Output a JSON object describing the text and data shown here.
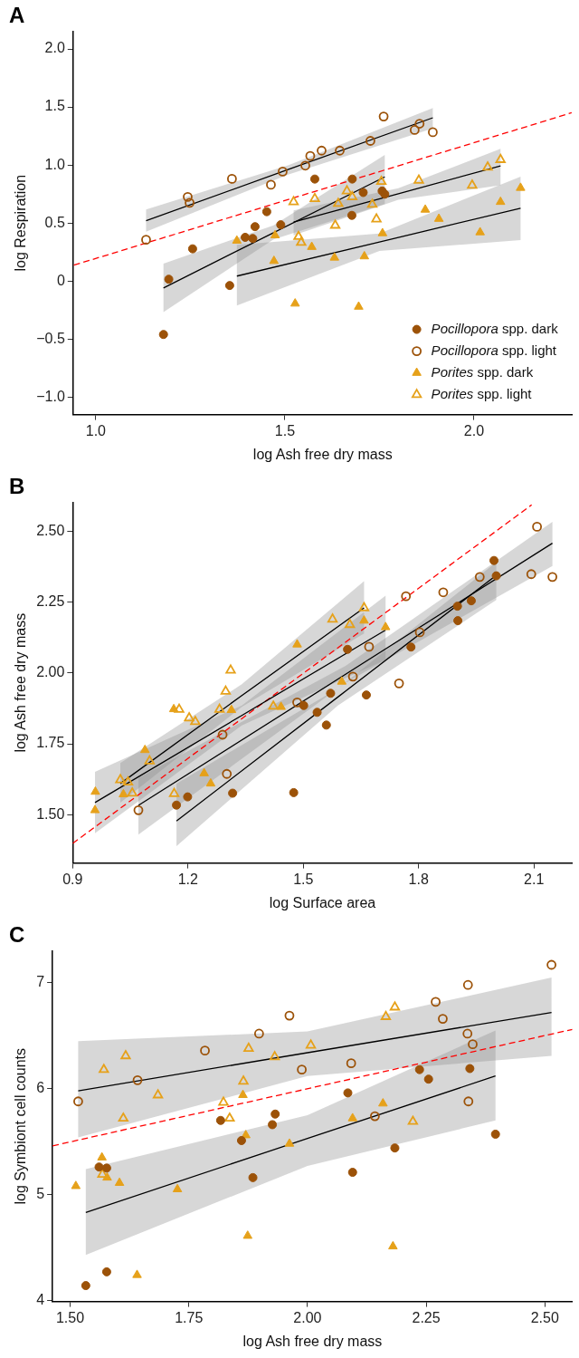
{
  "chart_data": [
    {
      "type": "scatter",
      "title": "A",
      "xlabel": "log Ash free dry mass",
      "ylabel": "log Respiration",
      "xlim": [
        0.94,
        2.26
      ],
      "ylim": [
        -1.15,
        2.15
      ],
      "xticks": [
        {
          "value": 1,
          "label": "1.0"
        },
        {
          "value": 1.5,
          "label": "1.5"
        },
        {
          "value": 2,
          "label": "2.0"
        }
      ],
      "yticks": [
        {
          "value": -1,
          "label": "−1.0"
        },
        {
          "value": -0.5,
          "label": "−0.5"
        },
        0,
        {
          "value": 0.5,
          "label": "0.5"
        },
        {
          "value": 1,
          "label": "1.0"
        },
        {
          "value": 1.5,
          "label": "1.5"
        },
        {
          "value": 2,
          "label": "2.0"
        }
      ],
      "legend": "bottom right",
      "series": [
        {
          "type": "line",
          "color": "#000000",
          "x": [
            1.133,
            1.51,
            1.891
          ],
          "values": [
            0.52,
            0.963,
            1.407
          ],
          "lower": [
            0.426,
            0.92,
            1.315
          ],
          "upper": [
            0.617,
            1.0,
            1.491
          ]
        },
        {
          "type": "line",
          "color": "#000000",
          "x": [
            1.179,
            1.47,
            1.764
          ],
          "values": [
            -0.059,
            0.417,
            0.898
          ],
          "lower": [
            -0.267,
            0.36,
            0.663
          ],
          "upper": [
            0.151,
            0.48,
            1.086
          ]
        },
        {
          "type": "line",
          "color": "#000000",
          "x": [
            1.523,
            1.8,
            2.07
          ],
          "values": [
            0.509,
            0.753,
            0.992
          ],
          "lower": [
            0.394,
            0.7,
            0.825
          ],
          "upper": [
            0.609,
            0.8,
            1.14
          ]
        },
        {
          "type": "line",
          "color": "#000000",
          "x": [
            1.373,
            1.75,
            2.123
          ],
          "values": [
            0.043,
            0.337,
            0.628
          ],
          "lower": [
            -0.21,
            0.26,
            0.353
          ],
          "upper": [
            0.313,
            0.41,
            0.9
          ]
        },
        {
          "type": "line",
          "color": "#ff0000",
          "line_style": "dashed",
          "x": [
            0.942,
            2.258
          ],
          "values": [
            0.137,
            1.45
          ]
        },
        {
          "name": "Pocillopora spp. dark",
          "color": "#9c5208",
          "marker": "circle",
          "x": [
            1.179,
            1.193,
            1.256,
            1.354,
            1.395,
            1.415,
            1.421,
            1.452,
            1.489,
            1.579,
            1.678,
            1.677,
            1.707,
            1.757,
            1.764
          ],
          "values": [
            -0.46,
            0.016,
            0.278,
            -0.038,
            0.377,
            0.367,
            0.469,
            0.598,
            0.485,
            0.879,
            0.879,
            0.566,
            0.763,
            0.776,
            0.749
          ]
        },
        {
          "name": "Pocillopora spp. light",
          "color": "#9c5208",
          "marker": "circle-open",
          "x": [
            1.133,
            1.243,
            1.248,
            1.36,
            1.463,
            1.494,
            1.554,
            1.567,
            1.597,
            1.645,
            1.726,
            1.761,
            1.843,
            1.856,
            1.891
          ],
          "values": [
            0.356,
            0.725,
            0.674,
            0.881,
            0.83,
            0.943,
            0.995,
            1.078,
            1.124,
            1.124,
            1.208,
            1.418,
            1.302,
            1.356,
            1.283
          ]
        },
        {
          "name": "Porites spp. dark",
          "color": "#e6a11a",
          "marker": "triangle",
          "x": [
            1.373,
            1.474,
            1.471,
            1.571,
            1.527,
            1.631,
            1.71,
            1.695,
            1.758,
            1.871,
            1.907,
            2.016,
            2.07,
            2.123
          ],
          "values": [
            0.348,
            0.394,
            0.173,
            0.294,
            -0.194,
            0.202,
            0.213,
            -0.221,
            0.412,
            0.615,
            0.536,
            0.42,
            0.682,
            0.803
          ]
        },
        {
          "name": "Porites spp. light",
          "color": "#e6a11a",
          "marker": "triangle-open",
          "x": [
            1.523,
            1.536,
            1.543,
            1.579,
            1.633,
            1.641,
            1.664,
            1.678,
            1.731,
            1.742,
            1.755,
            1.854,
            1.995,
            2.036,
            2.07
          ],
          "values": [
            0.682,
            0.383,
            0.332,
            0.709,
            0.48,
            0.668,
            0.776,
            0.725,
            0.66,
            0.534,
            0.857,
            0.868,
            0.825,
            0.981,
            1.046
          ]
        }
      ]
    },
    {
      "type": "scatter",
      "title": "B",
      "xlabel": "log Surface area",
      "ylabel": "log Ash free dry mass",
      "xlim": [
        0.9,
        2.2
      ],
      "ylim": [
        1.33,
        2.6
      ],
      "xticks": [
        0.9,
        1.2,
        1.5,
        1.8,
        2.1
      ],
      "yticks": [
        {
          "value": 1.5,
          "label": "1.50"
        },
        1.75,
        {
          "value": 2,
          "label": "2.00"
        },
        2.25,
        {
          "value": 2.5,
          "label": "2.50"
        }
      ],
      "series": [
        {
          "type": "line",
          "color": "#000000",
          "x": [
            1.024,
            1.34,
            1.658
          ],
          "values": [
            1.61,
            1.92,
            2.229
          ],
          "lower": [
            1.543,
            1.88,
            2.139
          ],
          "upper": [
            1.682,
            1.96,
            2.323
          ]
        },
        {
          "type": "line",
          "color": "#000000",
          "x": [
            0.958,
            1.34,
            1.714
          ],
          "values": [
            1.543,
            1.85,
            2.151
          ],
          "lower": [
            1.435,
            1.815,
            2.046
          ],
          "upper": [
            1.651,
            1.885,
            2.272
          ]
        },
        {
          "type": "line",
          "color": "#000000",
          "x": [
            1.071,
            1.61,
            2.148
          ],
          "values": [
            1.533,
            1.995,
            2.457
          ],
          "lower": [
            1.43,
            1.965,
            2.377
          ],
          "upper": [
            1.63,
            2.025,
            2.532
          ]
        },
        {
          "type": "line",
          "color": "#000000",
          "x": [
            1.17,
            1.59,
            2.002
          ],
          "values": [
            1.478,
            1.915,
            2.344
          ],
          "lower": [
            1.389,
            1.885,
            2.257
          ],
          "upper": [
            1.61,
            1.945,
            2.39
          ]
        },
        {
          "type": "line",
          "color": "#ff0000",
          "line_style": "dashed",
          "x": [
            0.9,
            2.094
          ],
          "values": [
            1.399,
            2.592
          ]
        },
        {
          "color": "#9c5208",
          "marker": "circle",
          "x": [
            1.17,
            1.199,
            1.316,
            1.475,
            1.501,
            1.536,
            1.56,
            1.571,
            1.615,
            1.664,
            1.78,
            1.901,
            1.902,
            1.937,
            1.996,
            2.002
          ],
          "values": [
            1.534,
            1.563,
            1.576,
            1.578,
            1.885,
            1.861,
            1.816,
            1.928,
            2.083,
            1.922,
            2.091,
            2.235,
            2.184,
            2.254,
            2.396,
            2.342
          ]
        },
        {
          "color": "#9c5208",
          "marker": "circle-open",
          "x": [
            1.071,
            1.29,
            1.301,
            1.484,
            1.629,
            1.671,
            1.749,
            1.767,
            1.803,
            1.864,
            1.959,
            2.093,
            2.108,
            2.148
          ],
          "values": [
            1.516,
            1.782,
            1.644,
            1.896,
            1.987,
            2.092,
            1.963,
            2.27,
            2.143,
            2.284,
            2.338,
            2.348,
            2.515,
            2.338
          ]
        },
        {
          "color": "#e6a11a",
          "marker": "triangle",
          "x": [
            0.959,
            0.958,
            1.088,
            1.032,
            1.163,
            1.242,
            1.259,
            1.313,
            1.442,
            1.484,
            1.6,
            1.658,
            1.714
          ],
          "values": [
            1.581,
            1.516,
            1.728,
            1.572,
            1.872,
            1.646,
            1.61,
            1.869,
            1.88,
            2.1,
            1.969,
            2.184,
            2.161
          ]
        },
        {
          "color": "#e6a11a",
          "marker": "triangle-open",
          "x": [
            1.024,
            1.044,
            1.055,
            1.1,
            1.164,
            1.177,
            1.203,
            1.219,
            1.282,
            1.298,
            1.311,
            1.422,
            1.576,
            1.621,
            1.658
          ],
          "values": [
            1.623,
            1.615,
            1.576,
            1.689,
            1.574,
            1.871,
            1.841,
            1.828,
            1.871,
            1.935,
            2.009,
            1.882,
            2.189,
            2.17,
            2.229
          ]
        }
      ]
    },
    {
      "type": "scatter",
      "title": "C",
      "xlabel": "log Ash free dry mass",
      "ylabel": "log Symbiont cell counts",
      "xlim": [
        1.463,
        2.558
      ],
      "ylim": [
        3.99,
        7.3
      ],
      "xticks": [
        {
          "value": 1.5,
          "label": "1.50"
        },
        1.75,
        {
          "value": 2,
          "label": "2.00"
        },
        2.25,
        {
          "value": 2.5,
          "label": "2.50"
        }
      ],
      "yticks": [
        4,
        5,
        6,
        7
      ],
      "series": [
        {
          "type": "line",
          "color": "#000000",
          "x": [
            1.517,
            2.0,
            2.514
          ],
          "values": [
            5.98,
            6.34,
            6.72
          ],
          "lower": [
            5.54,
            6.12,
            6.31
          ],
          "upper": [
            6.45,
            6.54,
            7.05
          ]
        },
        {
          "type": "line",
          "color": "#000000",
          "x": [
            1.533,
            2.0,
            2.396
          ],
          "values": [
            4.83,
            5.53,
            6.12
          ],
          "lower": [
            4.43,
            5.27,
            5.7
          ],
          "upper": [
            5.24,
            5.75,
            6.55
          ]
        },
        {
          "type": "line",
          "color": "#ff0000",
          "line_style": "dashed",
          "x": [
            1.463,
            2.558
          ],
          "values": [
            5.46,
            6.56
          ]
        },
        {
          "color": "#9c5208",
          "marker": "circle",
          "x": [
            1.533,
            1.577,
            1.561,
            1.577,
            1.817,
            1.861,
            1.932,
            1.926,
            1.885,
            2.085,
            2.095,
            2.184,
            2.236,
            2.255,
            2.342,
            2.396
          ],
          "values": [
            4.14,
            4.27,
            5.26,
            5.25,
            5.7,
            5.51,
            5.76,
            5.66,
            5.16,
            5.96,
            5.21,
            5.44,
            6.18,
            6.09,
            6.19,
            5.57
          ]
        },
        {
          "color": "#9c5208",
          "marker": "circle-open",
          "x": [
            1.517,
            1.642,
            1.784,
            1.898,
            1.962,
            1.988,
            2.092,
            2.142,
            2.27,
            2.285,
            2.338,
            2.337,
            2.348,
            2.339,
            2.514
          ],
          "values": [
            5.88,
            6.08,
            6.36,
            6.52,
            6.69,
            6.18,
            6.24,
            5.74,
            6.82,
            6.66,
            6.98,
            6.52,
            6.42,
            5.88,
            7.17
          ]
        },
        {
          "color": "#e6a11a",
          "marker": "triangle",
          "x": [
            1.512,
            1.567,
            1.578,
            1.604,
            1.641,
            1.726,
            1.864,
            1.87,
            1.874,
            1.962,
            2.095,
            2.159,
            2.18
          ],
          "values": [
            5.08,
            5.35,
            5.16,
            5.11,
            4.24,
            5.05,
            5.94,
            5.56,
            4.61,
            5.48,
            5.72,
            5.86,
            4.51
          ]
        },
        {
          "color": "#e6a11a",
          "marker": "triangle-open",
          "x": [
            1.571,
            1.617,
            1.568,
            1.612,
            1.685,
            1.823,
            1.836,
            1.865,
            1.876,
            1.931,
            2.007,
            2.165,
            2.184,
            2.222
          ],
          "values": [
            6.18,
            6.31,
            5.19,
            5.72,
            5.94,
            5.87,
            5.72,
            6.07,
            6.38,
            6.3,
            6.41,
            6.68,
            6.77,
            5.69
          ]
        }
      ]
    }
  ]
}
